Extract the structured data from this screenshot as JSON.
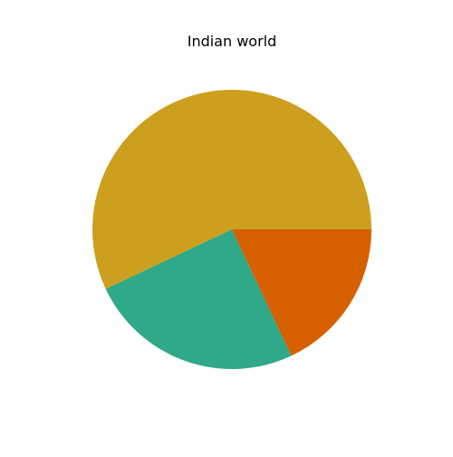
{
  "chart_data": {
    "type": "pie",
    "title": "Indian world",
    "slices": [
      {
        "value": 57,
        "color": "#CC9F1F"
      },
      {
        "value": 25,
        "color": "#2FA987"
      },
      {
        "value": 18,
        "color": "#D65F00"
      }
    ],
    "start_angle_deg": 0,
    "direction": "counterclockwise",
    "legend": "none"
  }
}
